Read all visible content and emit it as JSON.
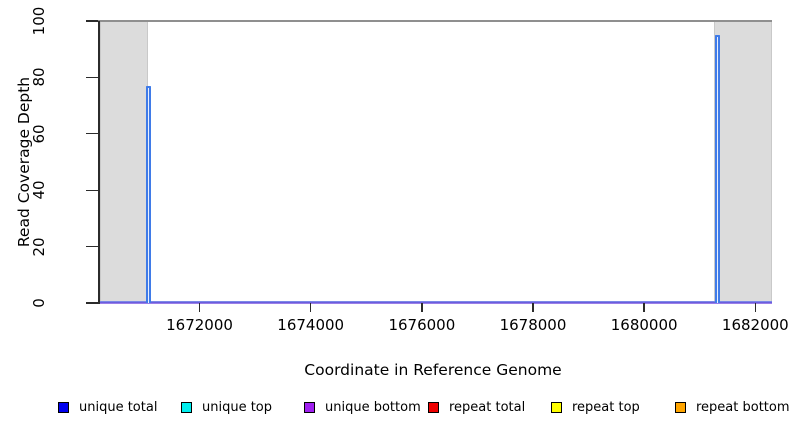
{
  "chart_data": {
    "type": "line",
    "title": "",
    "xlabel": "Coordinate in Reference Genome",
    "ylabel": "Read Coverage Depth",
    "xlim": [
      1670200,
      1682300
    ],
    "ylim": [
      0,
      100
    ],
    "x_ticks": [
      1672000,
      1674000,
      1676000,
      1678000,
      1680000,
      1682000
    ],
    "y_ticks": [
      0,
      20,
      40,
      60,
      80,
      100
    ],
    "grid": false,
    "legend_position": "bottom",
    "shaded_regions": [
      {
        "start": 1670200,
        "end": 1671070,
        "color": "#dcdcdc"
      },
      {
        "start": 1681260,
        "end": 1682300,
        "color": "#dcdcdc"
      }
    ],
    "max_depth_line": {
      "y": 100,
      "color": "#8f8f8f"
    },
    "baseline": {
      "y": 0,
      "color": "#7b68ee"
    },
    "spikes": [
      {
        "x": 1671080,
        "depth": 77,
        "color": "#3f7be8"
      },
      {
        "x": 1681320,
        "depth": 95,
        "color": "#3f7be8"
      }
    ],
    "legend": [
      {
        "label": "unique total",
        "color": "#0000ee"
      },
      {
        "label": "unique top",
        "color": "#00eeee"
      },
      {
        "label": "unique bottom",
        "color": "#a020f0"
      },
      {
        "label": "repeat total",
        "color": "#ee0000"
      },
      {
        "label": "repeat top",
        "color": "#ffff00"
      },
      {
        "label": "repeat bottom",
        "color": "#ffa500"
      }
    ]
  }
}
